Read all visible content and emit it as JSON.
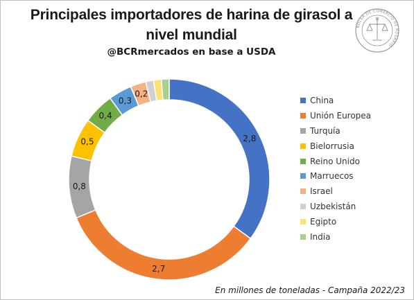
{
  "title": "Principales importadores de harina de girasol a nivel mundial",
  "subtitle": "@BCRmercados en base a USDA",
  "footnote": "En millones de toneladas - Campaña 2022/23",
  "seal_text": "BOLSA DE COMERCIO DE ROSARIO",
  "chart_data": {
    "type": "pie",
    "donut": true,
    "title": "Principales importadores de harina de girasol a nivel mundial",
    "unit": "millones de toneladas",
    "legend_position": "right",
    "categories": [
      "China",
      "Unión Europea",
      "Turquía",
      "Bielorrusia",
      "Reino Unido",
      "Marruecos",
      "Israel",
      "Uzbekistán",
      "Egipto",
      "India"
    ],
    "values": [
      2.8,
      2.7,
      0.8,
      0.5,
      0.4,
      0.3,
      0.2,
      0.1,
      0.1,
      0.1
    ],
    "labels": [
      "2,8",
      "2,7",
      "0,8",
      "0,5",
      "0,4",
      "0,3",
      "0,2",
      "",
      "",
      ""
    ],
    "colors": [
      "#4472C4",
      "#ED7D31",
      "#A5A5A5",
      "#FFC000",
      "#70AD47",
      "#5B9BD5",
      "#F4B183",
      "#D0D0D0",
      "#FFE070",
      "#A9D18E"
    ]
  }
}
